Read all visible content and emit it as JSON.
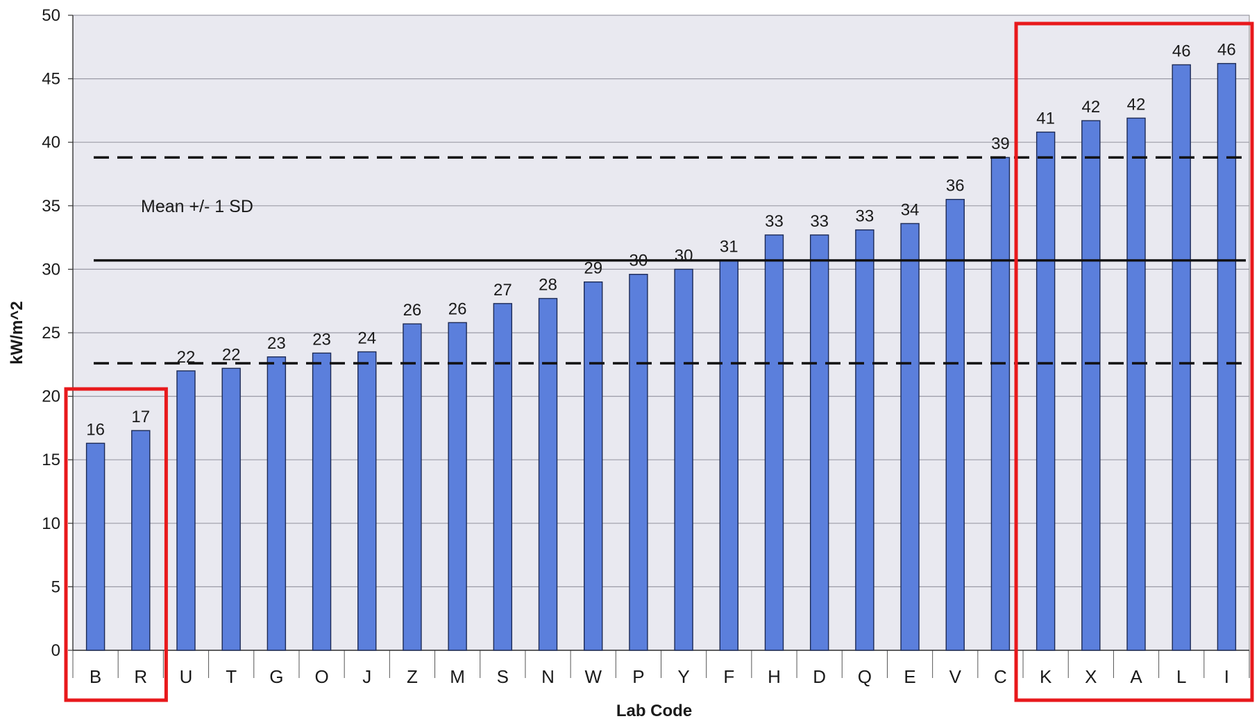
{
  "chart_data": {
    "type": "bar",
    "title": "",
    "xlabel": "Lab Code",
    "ylabel": "kW/m^2",
    "ylim": [
      0,
      50
    ],
    "yticks": [
      0,
      5,
      10,
      15,
      20,
      25,
      30,
      35,
      40,
      45,
      50
    ],
    "grid": true,
    "categories": [
      "B",
      "R",
      "U",
      "T",
      "G",
      "O",
      "J",
      "Z",
      "M",
      "S",
      "N",
      "W",
      "P",
      "Y",
      "F",
      "H",
      "D",
      "Q",
      "E",
      "V",
      "C",
      "K",
      "X",
      "A",
      "L",
      "I"
    ],
    "values": [
      16.3,
      17.3,
      22.0,
      22.2,
      23.1,
      23.4,
      23.5,
      25.7,
      25.8,
      27.3,
      27.7,
      29.0,
      29.6,
      30.0,
      30.7,
      32.7,
      32.7,
      33.1,
      33.6,
      35.5,
      38.8,
      40.8,
      41.7,
      41.9,
      46.1,
      46.2
    ],
    "data_labels": [
      "16",
      "17",
      "22",
      "22",
      "23",
      "23",
      "24",
      "26",
      "26",
      "27",
      "28",
      "29",
      "30",
      "30",
      "31",
      "33",
      "33",
      "33",
      "34",
      "36",
      "39",
      "41",
      "42",
      "42",
      "46",
      "46"
    ],
    "bar_color": "#5b7fdc",
    "plot_background": "#e9e9f0",
    "reference_lines": [
      {
        "kind": "mean",
        "value": 30.7,
        "style": "solid"
      },
      {
        "kind": "mean_plus_sd",
        "value": 38.8,
        "style": "dashed"
      },
      {
        "kind": "mean_minus_sd",
        "value": 22.6,
        "style": "dashed"
      }
    ],
    "annotations": [
      {
        "text": "Mean +/- 1 SD"
      }
    ],
    "highlight_boxes": [
      {
        "categories": [
          "B",
          "R"
        ],
        "color": "#e8191c"
      },
      {
        "categories": [
          "K",
          "X",
          "A",
          "L",
          "I"
        ],
        "color": "#e8191c"
      }
    ]
  }
}
